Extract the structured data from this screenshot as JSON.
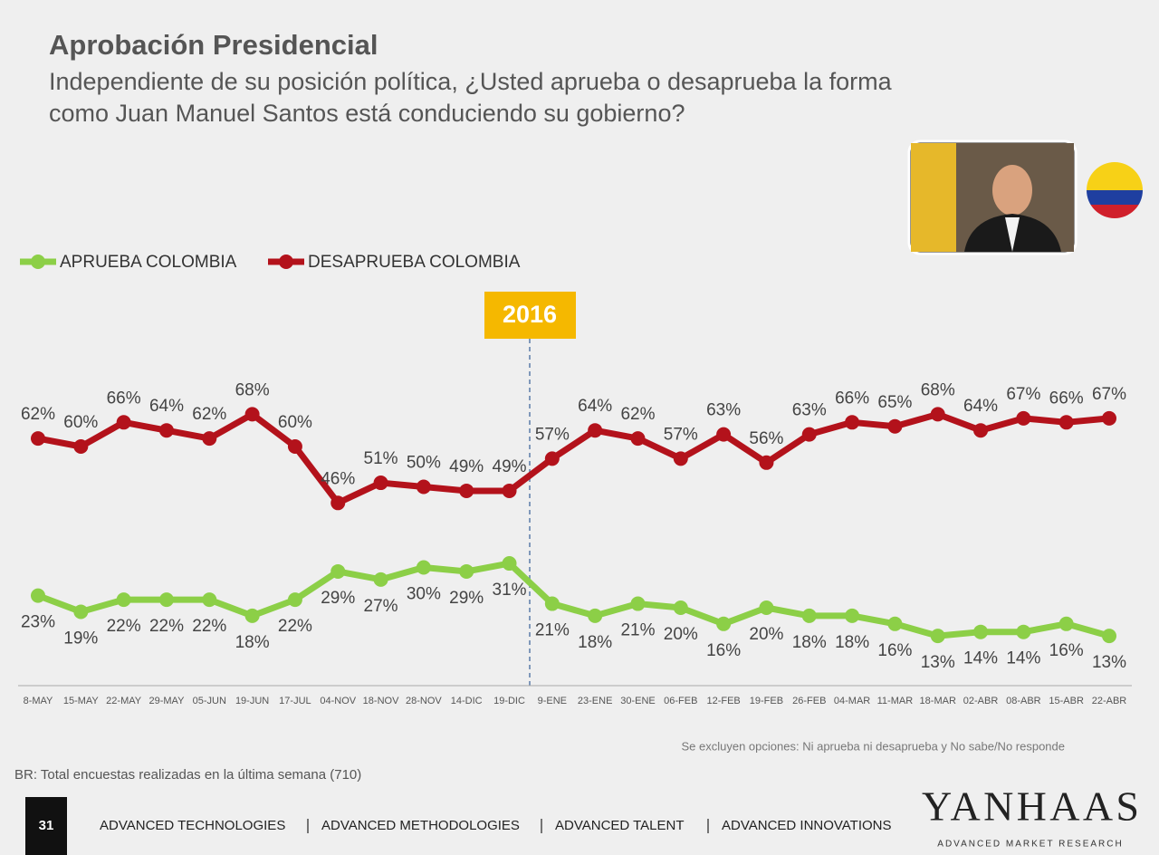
{
  "header": {
    "title": "Aprobación Presidencial",
    "subtitle": [
      "Independiente de su posición política, ¿Usted aprueba o desaprueba la forma",
      "como Juan Manuel Santos está conduciendo su gobierno?"
    ]
  },
  "chart_data": {
    "type": "line",
    "categories": [
      "8-MAY",
      "15-MAY",
      "22-MAY",
      "29-MAY",
      "05-JUN",
      "19-JUN",
      "17-JUL",
      "04-NOV",
      "18-NOV",
      "28-NOV",
      "14-DIC",
      "19-DIC",
      "9-ENE",
      "23-ENE",
      "30-ENE",
      "06-FEB",
      "12-FEB",
      "19-FEB",
      "26-FEB",
      "04-MAR",
      "11-MAR",
      "18-MAR",
      "02-ABR",
      "08-ABR",
      "15-ABR",
      "22-ABR"
    ],
    "series": [
      {
        "name": "APRUEBA COLOMBIA",
        "color": "#8ccf47",
        "values": [
          23,
          19,
          22,
          22,
          22,
          18,
          22,
          29,
          27,
          30,
          29,
          31,
          21,
          18,
          21,
          20,
          16,
          20,
          18,
          18,
          16,
          13,
          14,
          14,
          16,
          13
        ],
        "value_labels": [
          "23%",
          "19%",
          "22%",
          "22%",
          "22%",
          "18%",
          "22%",
          "29%",
          "27%",
          "30%",
          "29%",
          "31%",
          "21%",
          "18%",
          "21%",
          "20%",
          "16%",
          "20%",
          "18%",
          "18%",
          "16%",
          "13%",
          "14%",
          "14%",
          "16%",
          "13%"
        ]
      },
      {
        "name": "DESAPRUEBA COLOMBIA",
        "color": "#b3121b",
        "values": [
          62,
          60,
          66,
          64,
          62,
          68,
          60,
          46,
          51,
          50,
          49,
          49,
          57,
          64,
          62,
          57,
          63,
          56,
          63,
          66,
          65,
          68,
          64,
          67,
          66,
          67
        ],
        "value_labels": [
          "62%",
          "60%",
          "66%",
          "64%",
          "62%",
          "68%",
          "60%",
          "46%",
          "51%",
          "50%",
          "49%",
          "49%",
          "57%",
          "64%",
          "62%",
          "57%",
          "63%",
          "56%",
          "63%",
          "66%",
          "65%",
          "68%",
          "64%",
          "67%",
          "66%",
          "67%"
        ]
      }
    ],
    "annotation": "2016",
    "note": "Se excluyen opciones: Ni aprueba ni desaprueba y No sabe/No responde"
  },
  "base": "BR: Total encuestas realizadas en la última semana (710)",
  "footer": {
    "page": "31",
    "items": [
      "ADVANCED TECHNOLOGIES",
      "ADVANCED METHODOLOGIES",
      "ADVANCED TALENT",
      "ADVANCED INNOVATIONS"
    ],
    "logo": "YANHAAS",
    "tagline": "ADVANCED MARKET RESEARCH"
  }
}
